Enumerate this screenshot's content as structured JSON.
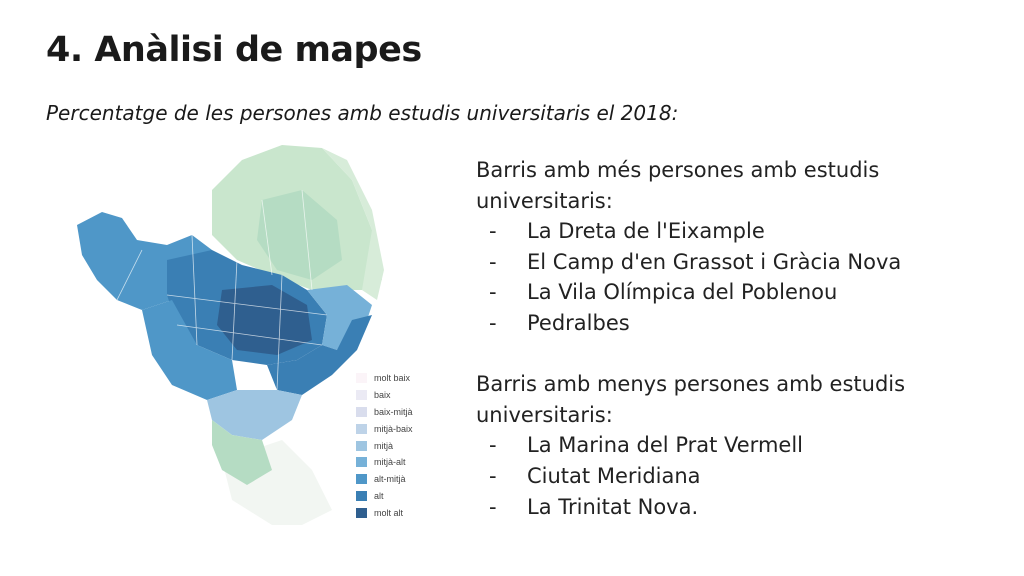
{
  "slide": {
    "title": "4. Anàlisi de mapes",
    "subtitle": "Percentatge de les persones amb estudis universitaris el 2018:"
  },
  "legend": [
    {
      "label": "molt baix",
      "color": "#fbf4f8"
    },
    {
      "label": "baix",
      "color": "#ebeaf4"
    },
    {
      "label": "baix-mitjà",
      "color": "#d9dded"
    },
    {
      "label": "mitjà-baix",
      "color": "#bed3e8"
    },
    {
      "label": "mitjà",
      "color": "#9ec5e1"
    },
    {
      "label": "mitjà-alt",
      "color": "#76b1d8"
    },
    {
      "label": "alt-mitjà",
      "color": "#4f97c8"
    },
    {
      "label": "alt",
      "color": "#3a7fb4"
    },
    {
      "label": "molt alt",
      "color": "#2f5f8f"
    }
  ],
  "most": {
    "heading": "Barris amb més persones amb estudis universitaris:",
    "items": [
      "La Dreta de l'Eixample",
      "El Camp d'en Grassot i Gràcia Nova",
      "La Vila Olímpica del Poblenou",
      "Pedralbes"
    ]
  },
  "least": {
    "heading": "Barris amb menys persones amb estudis universitaris:",
    "items": [
      "La Marina del Prat Vermell",
      "Ciutat Meridiana",
      "La Trinitat Nova."
    ]
  },
  "bullet": "-"
}
